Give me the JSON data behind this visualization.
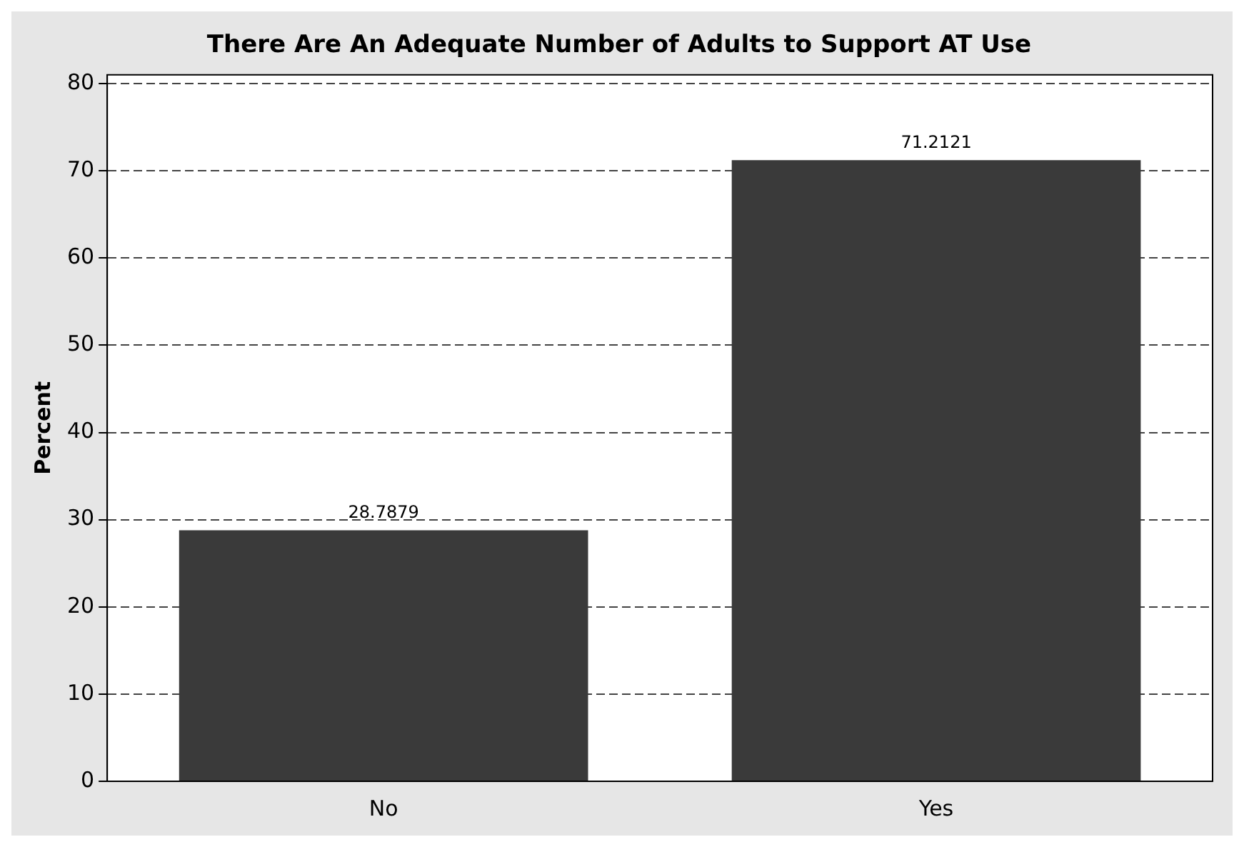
{
  "chart_data": {
    "type": "bar",
    "title": "There Are An Adequate Number of Adults to Support AT Use",
    "ylabel": "Percent",
    "categories": [
      "No",
      "Yes"
    ],
    "values": [
      28.7879,
      71.2121
    ],
    "color": "#3a3a3a",
    "ylim": [
      0,
      81
    ],
    "yticks": [
      0,
      10,
      20,
      30,
      40,
      50,
      60,
      70,
      80
    ],
    "grid": "y",
    "data_labels": true,
    "legend": false
  }
}
